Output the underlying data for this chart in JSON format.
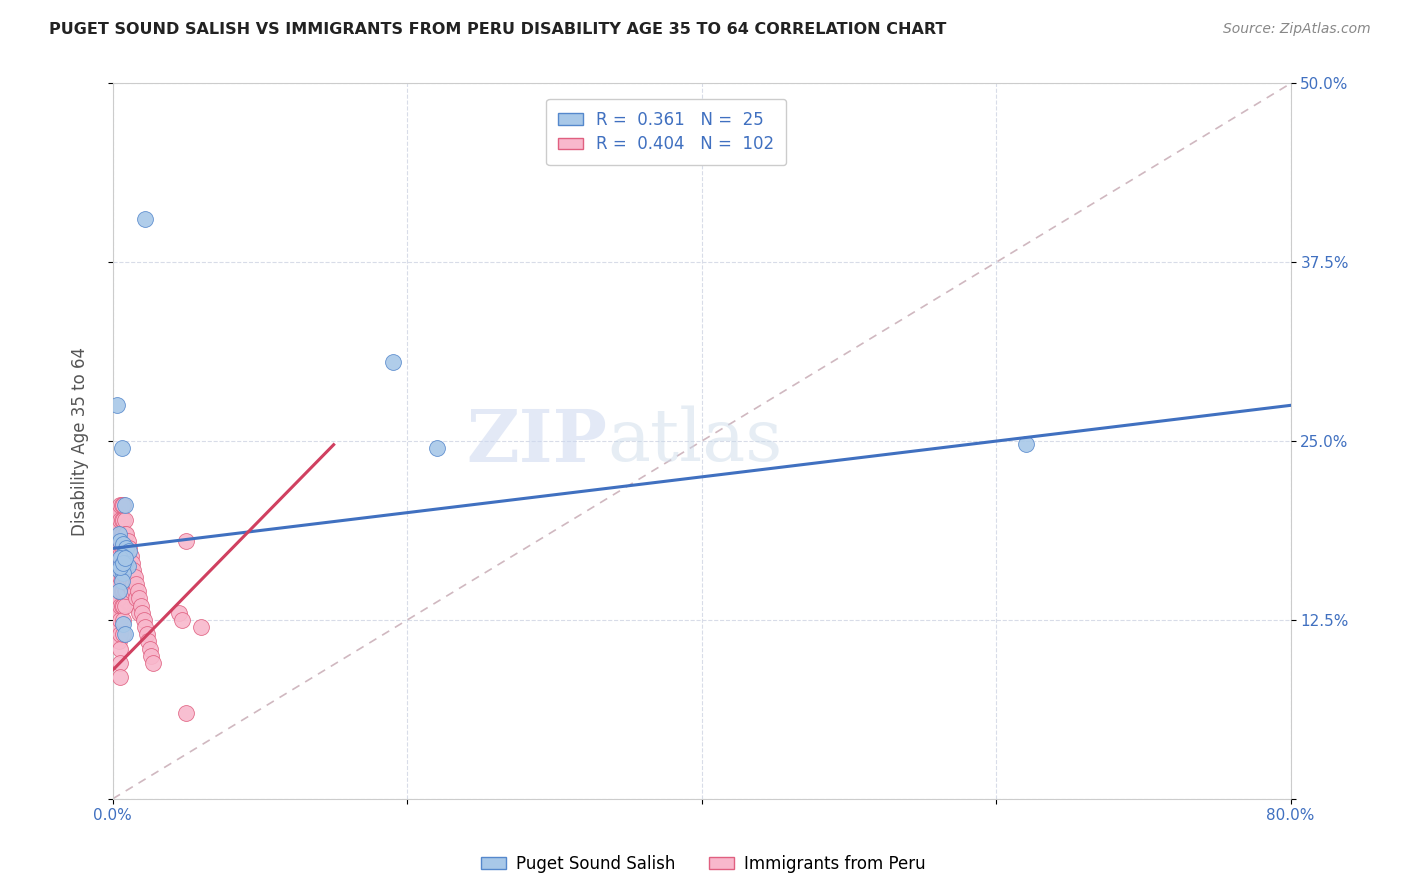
{
  "title": "PUGET SOUND SALISH VS IMMIGRANTS FROM PERU DISABILITY AGE 35 TO 64 CORRELATION CHART",
  "source": "Source: ZipAtlas.com",
  "ylabel": "Disability Age 35 to 64",
  "xlim": [
    0.0,
    0.8
  ],
  "ylim": [
    0.0,
    0.5
  ],
  "xticks": [
    0.0,
    0.2,
    0.4,
    0.6,
    0.8
  ],
  "xticklabels": [
    "0.0%",
    "",
    "",
    "",
    "80.0%"
  ],
  "yticks": [
    0.0,
    0.125,
    0.25,
    0.375,
    0.5
  ],
  "yticklabels": [
    "",
    "12.5%",
    "25.0%",
    "37.5%",
    "50.0%"
  ],
  "watermark_zip": "ZIP",
  "watermark_atlas": "atlas",
  "legend_R1": "0.361",
  "legend_N1": "25",
  "legend_R2": "0.404",
  "legend_N2": "102",
  "color_salish_fill": "#a8c8e8",
  "color_salish_edge": "#5588cc",
  "color_peru_fill": "#f8b8cc",
  "color_peru_edge": "#e06080",
  "color_line_salish": "#4070c0",
  "color_line_peru": "#d04060",
  "color_dashed": "#d0b8c0",
  "line_salish_x0": 0.0,
  "line_salish_y0": 0.175,
  "line_salish_x1": 0.8,
  "line_salish_y1": 0.275,
  "line_peru_x0": 0.0,
  "line_peru_y0": 0.09,
  "line_peru_x1": 0.1,
  "line_peru_y1": 0.195,
  "scatter_salish_x": [
    0.022,
    0.003,
    0.006,
    0.008,
    0.004,
    0.005,
    0.007,
    0.009,
    0.011,
    0.006,
    0.005,
    0.008,
    0.01,
    0.004,
    0.007,
    0.006,
    0.004,
    0.007,
    0.19,
    0.22,
    0.005,
    0.007,
    0.008,
    0.62,
    0.008
  ],
  "scatter_salish_y": [
    0.405,
    0.275,
    0.245,
    0.205,
    0.185,
    0.18,
    0.178,
    0.175,
    0.173,
    0.17,
    0.168,
    0.165,
    0.163,
    0.16,
    0.158,
    0.152,
    0.145,
    0.122,
    0.305,
    0.245,
    0.162,
    0.165,
    0.168,
    0.248,
    0.115
  ],
  "scatter_peru_x": [
    0.001,
    0.001,
    0.001,
    0.002,
    0.002,
    0.002,
    0.002,
    0.003,
    0.003,
    0.003,
    0.003,
    0.003,
    0.003,
    0.003,
    0.004,
    0.004,
    0.004,
    0.004,
    0.004,
    0.004,
    0.004,
    0.004,
    0.004,
    0.004,
    0.005,
    0.005,
    0.005,
    0.005,
    0.005,
    0.005,
    0.005,
    0.005,
    0.005,
    0.005,
    0.005,
    0.005,
    0.005,
    0.006,
    0.006,
    0.006,
    0.006,
    0.006,
    0.006,
    0.006,
    0.006,
    0.007,
    0.007,
    0.007,
    0.007,
    0.007,
    0.007,
    0.007,
    0.007,
    0.007,
    0.007,
    0.008,
    0.008,
    0.008,
    0.008,
    0.008,
    0.008,
    0.008,
    0.009,
    0.009,
    0.009,
    0.009,
    0.009,
    0.01,
    0.01,
    0.01,
    0.01,
    0.011,
    0.011,
    0.011,
    0.012,
    0.012,
    0.013,
    0.013,
    0.013,
    0.014,
    0.014,
    0.015,
    0.015,
    0.016,
    0.016,
    0.017,
    0.018,
    0.018,
    0.019,
    0.02,
    0.021,
    0.022,
    0.023,
    0.024,
    0.025,
    0.026,
    0.027,
    0.045,
    0.047,
    0.05,
    0.05,
    0.06
  ],
  "scatter_peru_y": [
    0.175,
    0.16,
    0.14,
    0.2,
    0.185,
    0.175,
    0.16,
    0.195,
    0.185,
    0.175,
    0.165,
    0.155,
    0.145,
    0.13,
    0.2,
    0.19,
    0.18,
    0.17,
    0.16,
    0.15,
    0.14,
    0.13,
    0.12,
    0.11,
    0.205,
    0.195,
    0.185,
    0.175,
    0.165,
    0.155,
    0.145,
    0.135,
    0.125,
    0.115,
    0.105,
    0.095,
    0.085,
    0.205,
    0.195,
    0.185,
    0.175,
    0.165,
    0.155,
    0.145,
    0.135,
    0.205,
    0.195,
    0.185,
    0.175,
    0.165,
    0.155,
    0.145,
    0.135,
    0.125,
    0.115,
    0.195,
    0.185,
    0.175,
    0.165,
    0.155,
    0.145,
    0.135,
    0.185,
    0.175,
    0.165,
    0.155,
    0.145,
    0.18,
    0.17,
    0.16,
    0.15,
    0.175,
    0.165,
    0.155,
    0.17,
    0.16,
    0.165,
    0.155,
    0.145,
    0.16,
    0.15,
    0.155,
    0.145,
    0.15,
    0.14,
    0.145,
    0.14,
    0.13,
    0.135,
    0.13,
    0.125,
    0.12,
    0.115,
    0.11,
    0.105,
    0.1,
    0.095,
    0.13,
    0.125,
    0.18,
    0.06,
    0.12
  ]
}
